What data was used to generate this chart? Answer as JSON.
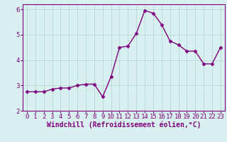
{
  "x": [
    0,
    1,
    2,
    3,
    4,
    5,
    6,
    7,
    8,
    9,
    10,
    11,
    12,
    13,
    14,
    15,
    16,
    17,
    18,
    19,
    20,
    21,
    22,
    23
  ],
  "y": [
    2.75,
    2.75,
    2.75,
    2.85,
    2.9,
    2.9,
    3.0,
    3.05,
    3.05,
    2.55,
    3.35,
    4.5,
    4.55,
    5.05,
    5.95,
    5.85,
    5.4,
    4.75,
    4.6,
    4.35,
    4.35,
    3.85,
    3.85,
    4.5
  ],
  "line_color": "#800080",
  "marker": "D",
  "marker_size": 2.5,
  "linewidth": 1.0,
  "bg_color": "#d8f0f0",
  "grid_color": "#b8d8d8",
  "xlabel": "Windchill (Refroidissement éolien,°C)",
  "xlabel_fontsize": 7,
  "tick_fontsize": 6.5,
  "xlim": [
    -0.5,
    23.5
  ],
  "ylim": [
    2.0,
    6.2
  ],
  "yticks": [
    2,
    3,
    4,
    5,
    6
  ],
  "xticks": [
    0,
    1,
    2,
    3,
    4,
    5,
    6,
    7,
    8,
    9,
    10,
    11,
    12,
    13,
    14,
    15,
    16,
    17,
    18,
    19,
    20,
    21,
    22,
    23
  ]
}
